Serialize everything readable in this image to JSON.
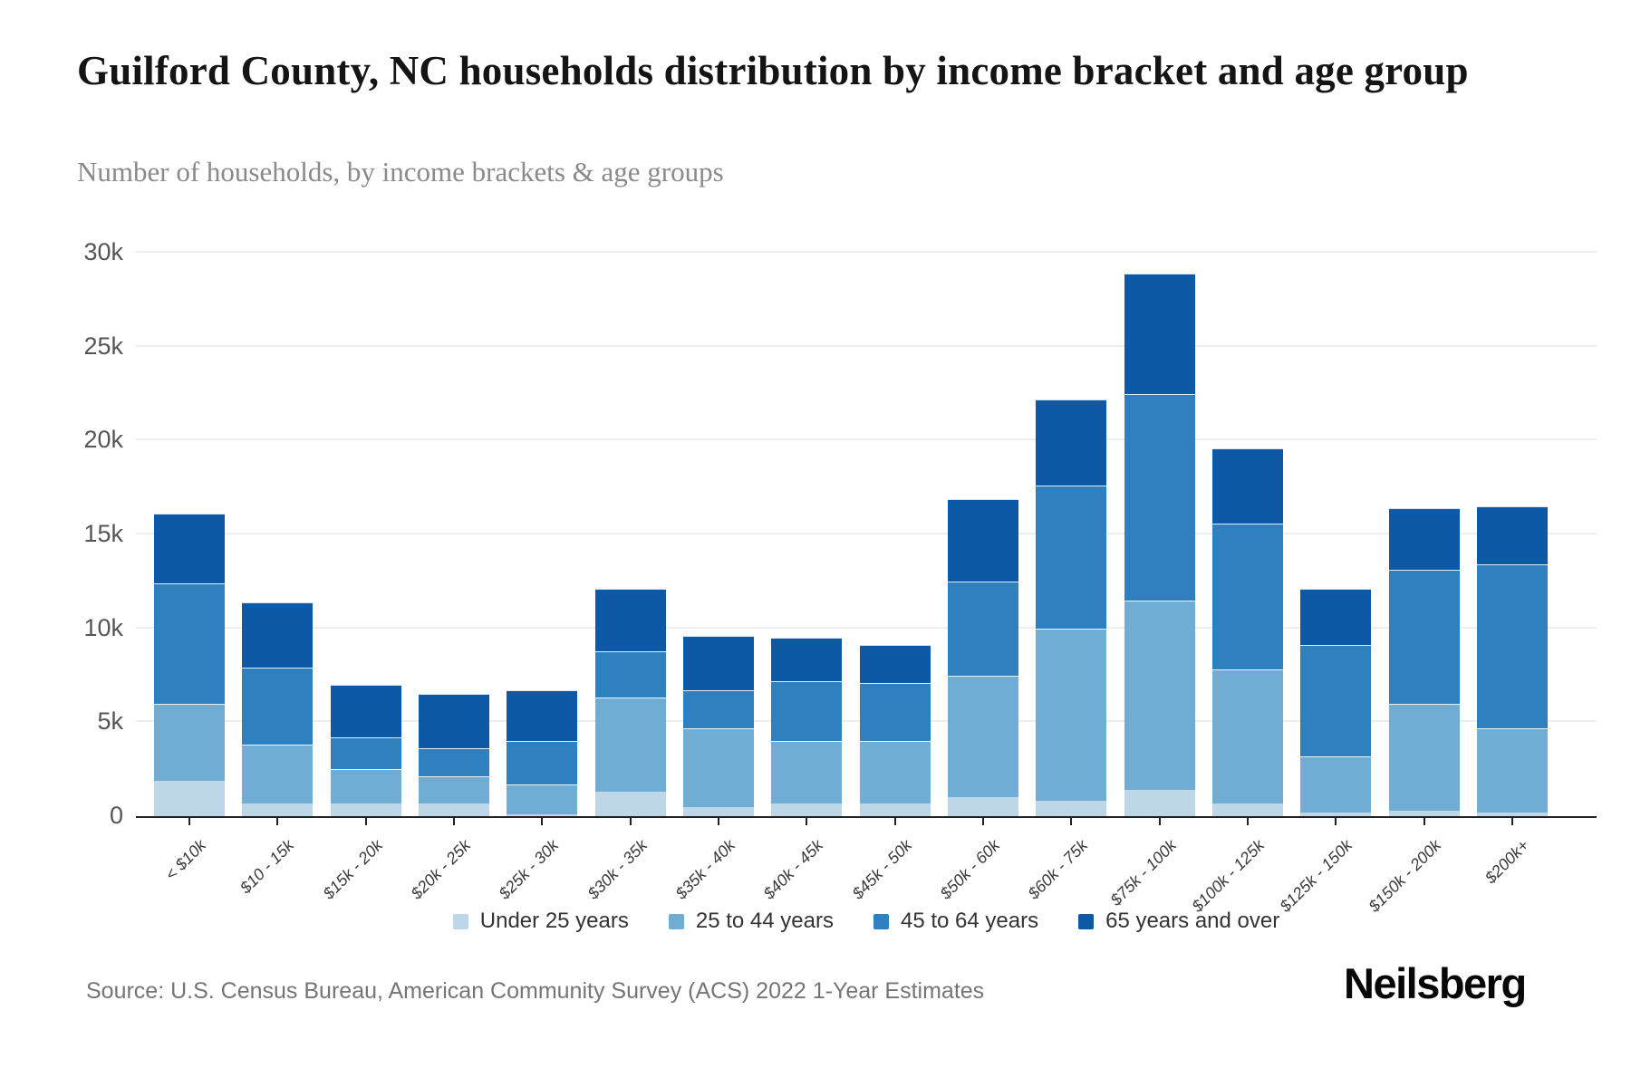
{
  "title": "Guilford County, NC households distribution by income bracket and age group",
  "subtitle": "Number of households, by income brackets & age groups",
  "source": "Source: U.S. Census Bureau, American Community Survey (ACS) 2022 1-Year Estimates",
  "brand": "Neilsberg",
  "colors": {
    "under_25": "#bdd7e8",
    "25_to_44": "#6fadd4",
    "45_to_64": "#2f80bf",
    "65_and_over": "#0e59a5",
    "gridline": "#eeeeee",
    "axis": "#222222"
  },
  "chart_data": {
    "type": "bar",
    "stacked": true,
    "title": "Guilford County, NC households distribution by income bracket and age group",
    "subtitle": "Number of households, by income brackets & age groups",
    "xlabel": "",
    "ylabel": "Number of households",
    "ylim": [
      0,
      30000
    ],
    "grid": "horizontal",
    "legend_position": "bottom",
    "y_ticks": [
      {
        "label": "30k",
        "value": 30000
      },
      {
        "label": "25k",
        "value": 25000
      },
      {
        "label": "20k",
        "value": 20000
      },
      {
        "label": "15k",
        "value": 15000
      },
      {
        "label": "10k",
        "value": 10000
      },
      {
        "label": "5k",
        "value": 5000
      },
      {
        "label": "0",
        "value": 0
      }
    ],
    "categories": [
      "< $10k",
      "$10 - 15k",
      "$15k - 20k",
      "$20k - 25k",
      "$25k - 30k",
      "$30k - 35k",
      "$35k - 40k",
      "$40k - 45k",
      "$45k - 50k",
      "$50k - 60k",
      "$60k - 75k",
      "$75k - 100k",
      "$100k - 125k",
      "$125k - 150k",
      "$150k - 200k",
      "$200k+"
    ],
    "series": [
      {
        "name": "Under 25 years",
        "color": "#bdd7e8",
        "values": [
          1900,
          700,
          700,
          700,
          100,
          1300,
          500,
          700,
          700,
          1000,
          800,
          1400,
          700,
          200,
          300,
          200
        ]
      },
      {
        "name": "25 to 44 years",
        "color": "#6fadd4",
        "values": [
          4100,
          3100,
          1800,
          1400,
          1600,
          5000,
          4200,
          3300,
          3300,
          6500,
          9200,
          10100,
          7100,
          3000,
          5700,
          4500
        ]
      },
      {
        "name": "45 to 64 years",
        "color": "#2f80bf",
        "values": [
          6400,
          4100,
          1700,
          1500,
          2300,
          2500,
          2000,
          3200,
          3100,
          5000,
          7600,
          11000,
          7800,
          5900,
          7100,
          8700
        ]
      },
      {
        "name": "65 years and over",
        "color": "#0e59a5",
        "values": [
          3700,
          3500,
          2800,
          2900,
          2700,
          3300,
          2900,
          2300,
          2000,
          4400,
          4600,
          6400,
          4000,
          3000,
          3300,
          3100
        ]
      }
    ],
    "totals": [
      16100,
      11400,
      7000,
      6500,
      6700,
      12100,
      9600,
      9500,
      9100,
      16900,
      22200,
      28900,
      19600,
      12100,
      16400,
      16500
    ]
  }
}
